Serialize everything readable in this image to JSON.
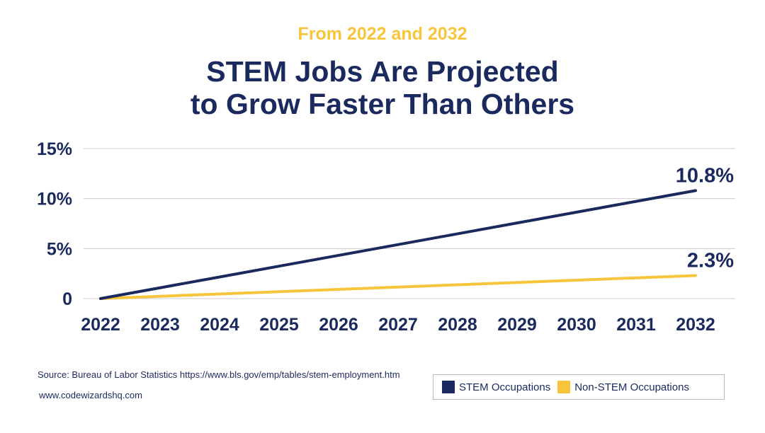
{
  "header": {
    "subtitle": "From 2022 and 2032",
    "title_line1": "STEM Jobs Are Projected",
    "title_line2": "to Grow Faster Than Others"
  },
  "chart_data": {
    "type": "line",
    "x": [
      "2022",
      "2023",
      "2024",
      "2025",
      "2026",
      "2027",
      "2028",
      "2029",
      "2030",
      "2031",
      "2032"
    ],
    "y_ticks": [
      {
        "value": 0,
        "label": "0"
      },
      {
        "value": 5,
        "label": "5%"
      },
      {
        "value": 10,
        "label": "10%"
      },
      {
        "value": 15,
        "label": "15%"
      }
    ],
    "ylim": [
      0,
      15
    ],
    "grid": true,
    "series": [
      {
        "name": "STEM Occupations",
        "color": "#1b2a5e",
        "values": [
          0,
          1.08,
          2.16,
          3.24,
          4.32,
          5.4,
          6.48,
          7.56,
          8.64,
          9.72,
          10.8
        ],
        "end_label": "10.8%"
      },
      {
        "name": "Non-STEM Occupations",
        "color": "#f7c53c",
        "values": [
          0,
          0.23,
          0.46,
          0.69,
          0.92,
          1.15,
          1.38,
          1.61,
          1.84,
          2.07,
          2.3
        ],
        "end_label": "2.3%"
      }
    ]
  },
  "footer": {
    "source": "Source: Bureau of Labor Statistics https://www.bls.gov/emp/tables/stem-employment.htm",
    "site": "www.codewizardshq.com"
  },
  "legend": {
    "items": [
      {
        "label": "STEM Occupations",
        "color": "#1b2a5e"
      },
      {
        "label": "Non-STEM Occupations",
        "color": "#f7c53c"
      }
    ]
  }
}
